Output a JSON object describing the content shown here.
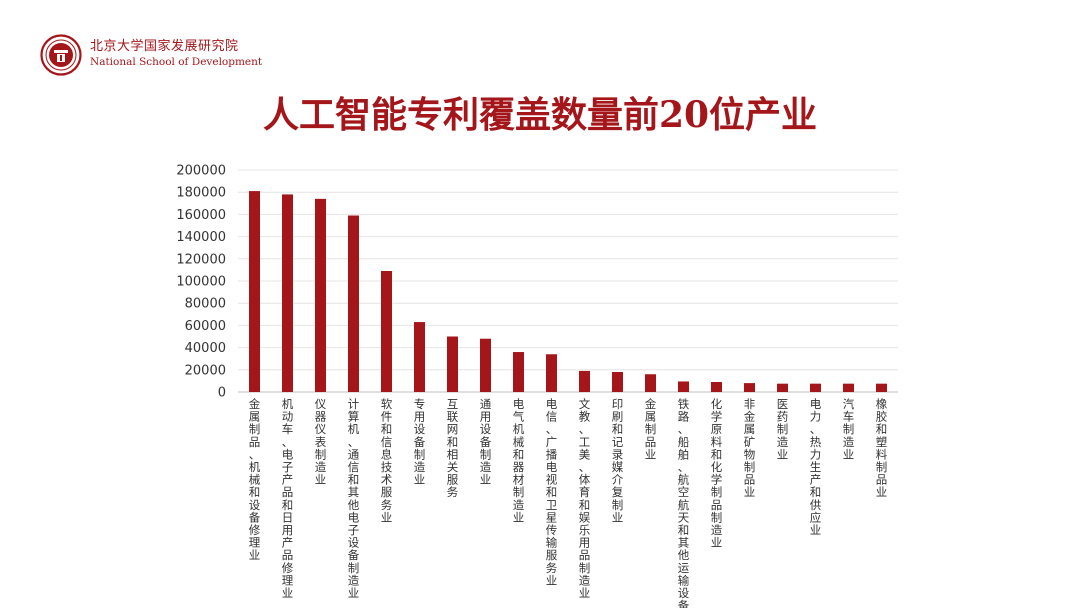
{
  "header": {
    "org_cn": "北京大学国家发展研究院",
    "org_en": "National School of Development"
  },
  "colors": {
    "accent": "#a4161a",
    "bar": "#a4161a"
  },
  "chart_data": {
    "type": "bar",
    "title": "人工智能专利覆盖数量前20位产业",
    "xlabel": "",
    "ylabel": "",
    "ylim": [
      0,
      200000
    ],
    "yticks": [
      0,
      20000,
      40000,
      60000,
      80000,
      100000,
      120000,
      140000,
      160000,
      180000,
      200000
    ],
    "grid": true,
    "categories": [
      "金属制品、机械和设备修理业",
      "机动车、电子产品和日用产品修理业",
      "仪器仪表制造业",
      "计算机、通信和其他电子设备制造业",
      "软件和信息技术服务业",
      "专用设备制造业",
      "互联网和相关服务",
      "通用设备制造业",
      "电气机械和器材制造业",
      "电信、广播电视和卫星传输服务业",
      "文教、工美、体育和娱乐用品制造业",
      "印刷和记录媒介复制业",
      "金属制品业",
      "铁路、船舶、航空航天和其他运输设备制",
      "化学原料和化学制品制造业",
      "非金属矿物制品业",
      "医药制造业",
      "电力、热力生产和供应业",
      "汽车制造业",
      "橡胶和塑料制品业"
    ],
    "values": [
      181000,
      178000,
      174000,
      159000,
      109000,
      63000,
      50000,
      48000,
      36000,
      34000,
      19000,
      18000,
      16000,
      9500,
      9000,
      8000,
      7500,
      7500,
      7500,
      7500
    ]
  }
}
